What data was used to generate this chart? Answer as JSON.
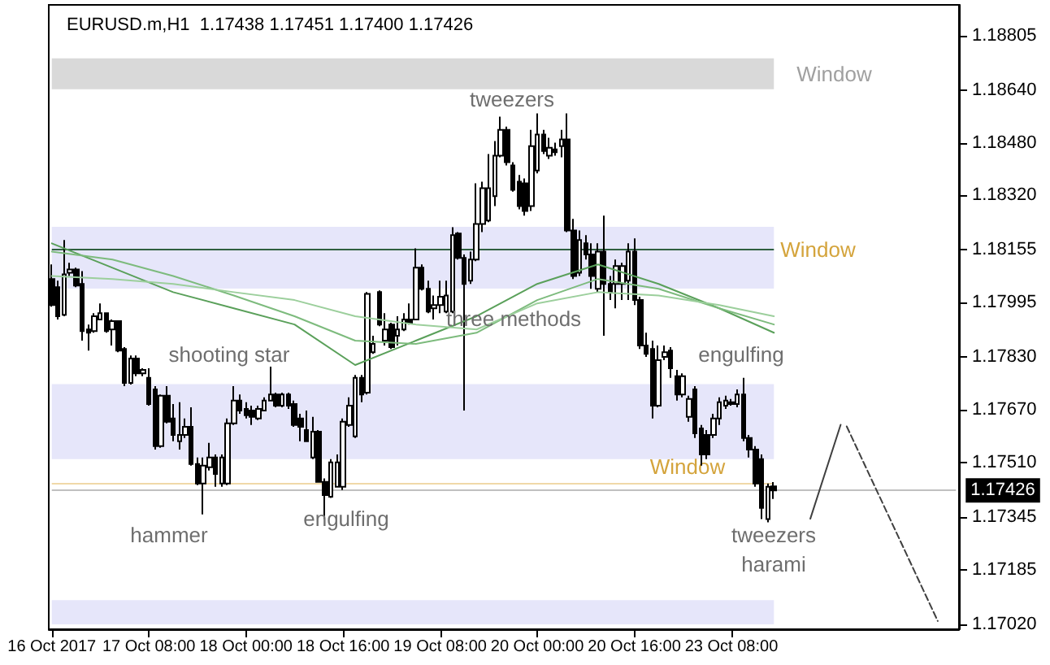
{
  "chart_data": {
    "type": "candlestick",
    "title": "EURUSD.m,H1  1.17438 1.17451 1.17400 1.17426",
    "color": "#000000",
    "categories": [
      "16 Oct 2017",
      null,
      null,
      null,
      null,
      null,
      null,
      null,
      null,
      null,
      null,
      null,
      null,
      null,
      null,
      null,
      "17 Oct 08:00",
      null,
      null,
      null,
      null,
      null,
      null,
      null,
      null,
      null,
      null,
      null,
      null,
      null,
      null,
      null,
      "18 Oct 00:00",
      null,
      null,
      null,
      null,
      null,
      null,
      null,
      null,
      null,
      null,
      null,
      null,
      null,
      null,
      null,
      "18 Oct 16:00",
      null,
      null,
      null,
      null,
      null,
      null,
      null,
      null,
      null,
      null,
      null,
      null,
      null,
      null,
      null,
      "19 Oct 08:00",
      null,
      null,
      null,
      null,
      null,
      null,
      null,
      null,
      null,
      null,
      null,
      null,
      null,
      null,
      null,
      "20 Oct 00:00",
      null,
      null,
      null,
      null,
      null,
      null,
      null,
      null,
      null,
      null,
      null,
      null,
      null,
      null,
      null,
      "20 Oct 16:00",
      null,
      null,
      null,
      null,
      null,
      null,
      null,
      null,
      null,
      null,
      null,
      null,
      null,
      null,
      null,
      "23 Oct 08:00",
      null,
      null,
      null,
      null,
      null,
      null,
      null,
      null,
      null,
      null,
      null,
      null,
      null,
      null,
      null,
      null,
      null,
      null,
      null,
      null,
      null,
      null,
      null,
      null,
      null,
      null,
      null,
      null,
      null,
      null,
      null,
      null,
      null,
      null,
      null,
      null,
      null
    ],
    "ohlc": [
      [
        1.18067,
        1.18111,
        1.17983,
        1.17988
      ],
      [
        1.18042,
        1.18062,
        1.17944,
        1.17954
      ],
      [
        1.17958,
        1.18185,
        1.17954,
        1.18081
      ],
      [
        1.18086,
        1.18116,
        1.18076,
        1.18096
      ],
      [
        1.18096,
        1.18101,
        1.18042,
        1.18047
      ],
      [
        1.18052,
        1.18091,
        1.1788,
        1.17909
      ],
      [
        1.17914,
        1.17929,
        1.1785,
        1.17904
      ],
      [
        1.17909,
        1.17963,
        1.17904,
        1.17954
      ],
      [
        1.17944,
        1.17993,
        1.17944,
        1.17963
      ],
      [
        1.17963,
        1.17963,
        1.17904,
        1.17909
      ],
      [
        1.17914,
        1.17944,
        1.17865,
        1.17939
      ],
      [
        1.17939,
        1.17939,
        1.17845,
        1.1785
      ],
      [
        1.17855,
        1.1786,
        1.17742,
        1.17752
      ],
      [
        1.17752,
        1.17835,
        1.17747,
        1.17826
      ],
      [
        1.17826,
        1.17835,
        1.17772,
        1.17781
      ],
      [
        1.17781,
        1.17796,
        1.17772,
        1.17791
      ],
      [
        1.17767,
        1.17796,
        1.17683,
        1.17688
      ],
      [
        1.17732,
        1.17742,
        1.1755,
        1.1756
      ],
      [
        1.1756,
        1.17717,
        1.17555,
        1.17713
      ],
      [
        1.17713,
        1.17742,
        1.17629,
        1.17634
      ],
      [
        1.17644,
        1.17688,
        1.17575,
        1.17594
      ],
      [
        1.17575,
        1.17693,
        1.1755,
        1.17594
      ],
      [
        1.17594,
        1.17644,
        1.17585,
        1.17619
      ],
      [
        1.17619,
        1.17678,
        1.17501,
        1.17506
      ],
      [
        1.17506,
        1.17526,
        1.17442,
        1.17447
      ],
      [
        1.17447,
        1.17526,
        1.17353,
        1.17501
      ],
      [
        1.17496,
        1.1757,
        1.17486,
        1.17526
      ],
      [
        1.17526,
        1.17535,
        1.17437,
        1.17476
      ],
      [
        1.17447,
        1.17535,
        1.17437,
        1.17526
      ],
      [
        1.17447,
        1.17644,
        1.17442,
        1.17629
      ],
      [
        1.17629,
        1.17742,
        1.17624,
        1.17698
      ],
      [
        1.17698,
        1.17717,
        1.17658,
        1.17668
      ],
      [
        1.17673,
        1.17693,
        1.17644,
        1.17654
      ],
      [
        1.17668,
        1.17683,
        1.17624,
        1.17649
      ],
      [
        1.17644,
        1.17683,
        1.17639,
        1.17673
      ],
      [
        1.17668,
        1.17708,
        1.17668,
        1.17698
      ],
      [
        1.17698,
        1.17801,
        1.17698,
        1.17717
      ],
      [
        1.17717,
        1.17722,
        1.17678,
        1.17683
      ],
      [
        1.17683,
        1.17722,
        1.17678,
        1.17717
      ],
      [
        1.17717,
        1.17722,
        1.17673,
        1.17683
      ],
      [
        1.17688,
        1.17698,
        1.17619,
        1.17624
      ],
      [
        1.17644,
        1.17658,
        1.17575,
        1.17619
      ],
      [
        1.17609,
        1.17668,
        1.17575,
        1.17575
      ],
      [
        1.17526,
        1.17649,
        1.17521,
        1.17604
      ],
      [
        1.17604,
        1.17609,
        1.17452,
        1.17452
      ],
      [
        1.17452,
        1.17462,
        1.17339,
        1.17412
      ],
      [
        1.17407,
        1.17521,
        1.17403,
        1.17511
      ],
      [
        1.17437,
        1.17535,
        1.17437,
        1.17511
      ],
      [
        1.17437,
        1.17644,
        1.17427,
        1.17634
      ],
      [
        1.17624,
        1.17708,
        1.17619,
        1.17683
      ],
      [
        1.1759,
        1.17776,
        1.17585,
        1.17767
      ],
      [
        1.17767,
        1.17776,
        1.17693,
        1.17717
      ],
      [
        1.17722,
        1.18027,
        1.17717,
        1.18022
      ],
      [
        1.17845,
        1.17895,
        1.1784,
        1.1787
      ],
      [
        1.18027,
        1.18032,
        1.17924,
        1.17929
      ],
      [
        1.1788,
        1.17963,
        1.17865,
        1.17914
      ],
      [
        1.17929,
        1.17934,
        1.17855,
        1.1786
      ],
      [
        1.17895,
        1.17954,
        1.17865,
        1.17914
      ],
      [
        1.17914,
        1.17963,
        1.17909,
        1.17944
      ],
      [
        1.17944,
        1.17993,
        1.17929,
        1.17934
      ],
      [
        1.17944,
        1.1816,
        1.17944,
        1.18101
      ],
      [
        1.18101,
        1.18111,
        1.18032,
        1.18037
      ],
      [
        1.18037,
        1.18062,
        1.17963,
        1.17968
      ],
      [
        1.17978,
        1.18017,
        1.17944,
        1.17988
      ],
      [
        1.17988,
        1.18062,
        1.17963,
        1.18013
      ],
      [
        1.17968,
        1.18062,
        1.17963,
        1.18017
      ],
      [
        1.17968,
        1.18224,
        1.17963,
        1.182
      ],
      [
        1.18205,
        1.18209,
        1.18126,
        1.18131
      ],
      [
        1.18131,
        1.18141,
        1.17668,
        1.18052
      ],
      [
        1.18062,
        1.1815,
        1.18052,
        1.18126
      ],
      [
        1.18126,
        1.18357,
        1.18121,
        1.18234
      ],
      [
        1.18234,
        1.18362,
        1.18209,
        1.18342
      ],
      [
        1.18244,
        1.18446,
        1.18239,
        1.18342
      ],
      [
        1.18318,
        1.18485,
        1.18288,
        1.18441
      ],
      [
        1.18441,
        1.18559,
        1.18436,
        1.18519
      ],
      [
        1.18519,
        1.18529,
        1.18411,
        1.18421
      ],
      [
        1.18411,
        1.18421,
        1.18332,
        1.18337
      ],
      [
        1.18362,
        1.18382,
        1.18278,
        1.18288
      ],
      [
        1.18357,
        1.18372,
        1.18259,
        1.18273
      ],
      [
        1.18288,
        1.18519,
        1.18273,
        1.1847
      ],
      [
        1.18396,
        1.18569,
        1.18387,
        1.18505
      ],
      [
        1.18505,
        1.18519,
        1.18446,
        1.18455
      ],
      [
        1.18441,
        1.18495,
        1.18431,
        1.18465
      ],
      [
        1.1846,
        1.1848,
        1.18441,
        1.18451
      ],
      [
        1.1847,
        1.18519,
        1.18436,
        1.1849
      ],
      [
        1.1849,
        1.18569,
        1.18209,
        1.18214
      ],
      [
        1.18214,
        1.18249,
        1.18067,
        1.18076
      ],
      [
        1.18086,
        1.18214,
        1.18076,
        1.18185
      ],
      [
        1.18175,
        1.182,
        1.18126,
        1.18141
      ],
      [
        1.18141,
        1.18175,
        1.18037,
        1.18076
      ],
      [
        1.18037,
        1.18175,
        1.18027,
        1.1815
      ],
      [
        1.1815,
        1.18259,
        1.17895,
        1.18052
      ],
      [
        1.18052,
        1.18076,
        1.18003,
        1.18027
      ],
      [
        1.18052,
        1.18126,
        1.17978,
        1.18106
      ],
      [
        1.18052,
        1.18116,
        1.18003,
        1.18106
      ],
      [
        1.18062,
        1.18175,
        1.18003,
        1.1815
      ],
      [
        1.1815,
        1.1819,
        1.17988,
        1.18003
      ],
      [
        1.18003,
        1.18013,
        1.17855,
        1.17865
      ],
      [
        1.17865,
        1.17904,
        1.17831,
        1.1784
      ],
      [
        1.17855,
        1.1788,
        1.17644,
        1.17683
      ],
      [
        1.17683,
        1.17865,
        1.17678,
        1.17821
      ],
      [
        1.17831,
        1.17865,
        1.17821,
        1.17845
      ],
      [
        1.1785,
        1.1786,
        1.17767,
        1.17796
      ],
      [
        1.17772,
        1.17791,
        1.17698,
        1.17717
      ],
      [
        1.17717,
        1.17781,
        1.17708,
        1.17772
      ],
      [
        1.17649,
        1.17713,
        1.17634,
        1.17703
      ],
      [
        1.17732,
        1.17742,
        1.17585,
        1.17599
      ],
      [
        1.17614,
        1.17624,
        1.17501,
        1.17535
      ],
      [
        1.17594,
        1.17609,
        1.17521,
        1.17535
      ],
      [
        1.17594,
        1.17658,
        1.17585,
        1.17644
      ],
      [
        1.17644,
        1.17708,
        1.17624,
        1.17693
      ],
      [
        1.17683,
        1.17713,
        1.17673,
        1.17698
      ],
      [
        1.17693,
        1.17703,
        1.17683,
        1.17688
      ],
      [
        1.17688,
        1.17732,
        1.17678,
        1.17717
      ],
      [
        1.17717,
        1.17767,
        1.17575,
        1.17585
      ],
      [
        1.17585,
        1.17594,
        1.17526,
        1.1755
      ],
      [
        1.1755,
        1.1756,
        1.17437,
        1.17447
      ],
      [
        1.17521,
        1.17535,
        1.17339,
        1.17373
      ],
      [
        1.17339,
        1.17447,
        1.17329,
        1.17437
      ],
      [
        1.17438,
        1.17451,
        1.174,
        1.17426
      ],
      null,
      null,
      null,
      null,
      null,
      null,
      null,
      null,
      null,
      null,
      null,
      null,
      null,
      null,
      null,
      null,
      null,
      null,
      null,
      null,
      null,
      null,
      null,
      null,
      null,
      null,
      null,
      null,
      null,
      null
    ],
    "series": [
      {
        "type": "line",
        "color": "#5aa05a",
        "values": [
          1.18175,
          null,
          null,
          null,
          null,
          null,
          null,
          null,
          null,
          null,
          1.18101,
          null,
          null,
          null,
          null,
          null,
          null,
          null,
          null,
          null,
          1.18027,
          null,
          null,
          null,
          null,
          null,
          null,
          null,
          null,
          null,
          1.17978,
          null,
          null,
          null,
          null,
          null,
          null,
          null,
          null,
          null,
          1.17929,
          null,
          null,
          null,
          null,
          null,
          null,
          null,
          null,
          null,
          1.17806,
          null,
          null,
          null,
          null,
          null,
          null,
          null,
          null,
          null,
          1.1788,
          null,
          null,
          null,
          null,
          null,
          null,
          null,
          null,
          null,
          1.17954,
          null,
          null,
          null,
          null,
          null,
          null,
          null,
          null,
          null,
          1.18052,
          null,
          null,
          null,
          null,
          null,
          null,
          null,
          null,
          null,
          1.18111,
          null,
          null,
          null,
          null,
          null,
          null,
          null,
          null,
          null,
          1.18052,
          null,
          null,
          null,
          null,
          null,
          null,
          null,
          null,
          null,
          1.17978,
          null,
          null,
          null,
          null,
          null,
          null,
          null,
          null,
          1.17904,
          null,
          null,
          null,
          null,
          null,
          null,
          null,
          null,
          null,
          null,
          null,
          null,
          null,
          null,
          null,
          null,
          null,
          null,
          null,
          null,
          null,
          null,
          null,
          null,
          null,
          null,
          null,
          null,
          null,
          null
        ]
      },
      {
        "type": "line",
        "color": "#7dbb7d",
        "values": [
          1.1815,
          null,
          null,
          null,
          null,
          null,
          null,
          null,
          null,
          null,
          1.18126,
          null,
          null,
          null,
          null,
          null,
          null,
          null,
          null,
          null,
          1.18076,
          null,
          null,
          null,
          null,
          null,
          null,
          null,
          null,
          null,
          1.18017,
          null,
          null,
          null,
          null,
          null,
          null,
          null,
          null,
          null,
          1.17954,
          null,
          null,
          null,
          null,
          null,
          null,
          null,
          null,
          null,
          1.1788,
          null,
          null,
          null,
          null,
          null,
          null,
          null,
          null,
          null,
          1.1787,
          null,
          null,
          null,
          null,
          null,
          null,
          null,
          null,
          null,
          1.17904,
          null,
          null,
          null,
          null,
          null,
          null,
          null,
          null,
          null,
          1.18003,
          null,
          null,
          null,
          null,
          null,
          null,
          null,
          null,
          null,
          1.18067,
          null,
          null,
          null,
          null,
          null,
          null,
          null,
          null,
          null,
          1.18037,
          null,
          null,
          null,
          null,
          null,
          null,
          null,
          null,
          null,
          1.17978,
          null,
          null,
          null,
          null,
          null,
          null,
          null,
          null,
          1.17929,
          null,
          null,
          null,
          null,
          null,
          null,
          null,
          null,
          null,
          null,
          null,
          null,
          null,
          null,
          null,
          null,
          null,
          null,
          null,
          null,
          null,
          null,
          null,
          null,
          null,
          null,
          null,
          null,
          null,
          null
        ]
      },
      {
        "type": "line",
        "color": "#9ccf9c",
        "values": [
          1.18076,
          null,
          null,
          null,
          null,
          null,
          null,
          null,
          null,
          null,
          1.18067,
          null,
          null,
          null,
          null,
          null,
          null,
          null,
          null,
          null,
          1.18052,
          null,
          null,
          null,
          null,
          null,
          null,
          null,
          null,
          null,
          1.18027,
          null,
          null,
          null,
          null,
          null,
          null,
          null,
          null,
          null,
          1.18003,
          null,
          null,
          null,
          null,
          null,
          null,
          null,
          null,
          null,
          1.17954,
          null,
          null,
          null,
          null,
          null,
          null,
          null,
          null,
          null,
          1.17929,
          null,
          null,
          null,
          null,
          null,
          null,
          null,
          null,
          null,
          1.17914,
          null,
          null,
          null,
          null,
          null,
          null,
          null,
          null,
          null,
          1.17993,
          null,
          null,
          null,
          null,
          null,
          null,
          null,
          null,
          null,
          1.18027,
          null,
          null,
          null,
          null,
          null,
          null,
          null,
          null,
          null,
          1.18017,
          null,
          null,
          null,
          null,
          null,
          null,
          null,
          null,
          null,
          1.17988,
          null,
          null,
          null,
          null,
          null,
          null,
          null,
          null,
          1.17954,
          null,
          null,
          null,
          null,
          null,
          null,
          null,
          null,
          null,
          null,
          null,
          null,
          null,
          null,
          null,
          null,
          null,
          null,
          null,
          null,
          null,
          null,
          null,
          null,
          null,
          null,
          null,
          null,
          null,
          null
        ]
      },
      {
        "type": "line",
        "color": "#404040",
        "line_style": "solid",
        "values": [
          null,
          null,
          null,
          null,
          null,
          null,
          null,
          null,
          null,
          null,
          null,
          null,
          null,
          null,
          null,
          null,
          null,
          null,
          null,
          null,
          null,
          null,
          null,
          null,
          null,
          null,
          null,
          null,
          null,
          null,
          null,
          null,
          null,
          null,
          null,
          null,
          null,
          null,
          null,
          null,
          null,
          null,
          null,
          null,
          null,
          null,
          null,
          null,
          null,
          null,
          null,
          null,
          null,
          null,
          null,
          null,
          null,
          null,
          null,
          null,
          null,
          null,
          null,
          null,
          null,
          null,
          null,
          null,
          null,
          null,
          null,
          null,
          null,
          null,
          null,
          null,
          null,
          null,
          null,
          null,
          null,
          null,
          null,
          null,
          null,
          null,
          null,
          null,
          null,
          null,
          null,
          null,
          null,
          null,
          null,
          null,
          null,
          null,
          null,
          null,
          null,
          null,
          null,
          null,
          null,
          null,
          null,
          null,
          null,
          null,
          null,
          null,
          null,
          null,
          null,
          null,
          null,
          null,
          null,
          null,
          null,
          null,
          null,
          null,
          null,
          1.1734,
          null,
          null,
          null,
          null,
          1.17625,
          null,
          null,
          null,
          null,
          null,
          null,
          null,
          null,
          null,
          null,
          null,
          null,
          null,
          null,
          null,
          null,
          null,
          null,
          null
        ]
      },
      {
        "type": "line",
        "color": "#404040",
        "line_style": "dashed",
        "values": [
          null,
          null,
          null,
          null,
          null,
          null,
          null,
          null,
          null,
          null,
          null,
          null,
          null,
          null,
          null,
          null,
          null,
          null,
          null,
          null,
          null,
          null,
          null,
          null,
          null,
          null,
          null,
          null,
          null,
          null,
          null,
          null,
          null,
          null,
          null,
          null,
          null,
          null,
          null,
          null,
          null,
          null,
          null,
          null,
          null,
          null,
          null,
          null,
          null,
          null,
          null,
          null,
          null,
          null,
          null,
          null,
          null,
          null,
          null,
          null,
          null,
          null,
          null,
          null,
          null,
          null,
          null,
          null,
          null,
          null,
          null,
          null,
          null,
          null,
          null,
          null,
          null,
          null,
          null,
          null,
          null,
          null,
          null,
          null,
          null,
          null,
          null,
          null,
          null,
          null,
          null,
          null,
          null,
          null,
          null,
          null,
          null,
          null,
          null,
          null,
          null,
          null,
          null,
          null,
          null,
          null,
          null,
          null,
          null,
          null,
          null,
          null,
          null,
          null,
          null,
          null,
          null,
          null,
          null,
          null,
          null,
          null,
          null,
          null,
          null,
          null,
          null,
          null,
          null,
          null,
          null,
          1.1762,
          null,
          null,
          null,
          null,
          null,
          null,
          null,
          null,
          null,
          null,
          null,
          null,
          null,
          null,
          1.1703,
          null,
          null,
          null
        ]
      }
    ],
    "ylim": [
      1.17005,
      1.18898
    ],
    "yticks": [
      {
        "value": 1.18805,
        "label": "1.18805"
      },
      {
        "value": 1.1864,
        "label": "1.18640"
      },
      {
        "value": 1.1848,
        "label": "1.18480"
      },
      {
        "value": 1.1832,
        "label": "1.18320"
      },
      {
        "value": 1.18155,
        "label": "1.18155"
      },
      {
        "value": 1.17995,
        "label": "1.17995"
      },
      {
        "value": 1.1783,
        "label": "1.17830"
      },
      {
        "value": 1.1767,
        "label": "1.17670"
      },
      {
        "value": 1.1751,
        "label": "1.17510"
      },
      {
        "value": 1.17345,
        "label": "1.17345"
      },
      {
        "value": 1.17185,
        "label": "1.17185"
      },
      {
        "value": 1.1702,
        "label": "1.17020"
      }
    ],
    "bands": [
      {
        "axis": "y",
        "from": 1.18642,
        "to": 1.18736,
        "label": "Window",
        "color": "#d9d9d9"
      },
      {
        "axis": "y",
        "from": 1.18038,
        "to": 1.18225,
        "color": "#e6e6fa"
      },
      {
        "axis": "y",
        "from": 1.17521,
        "to": 1.17748,
        "color": "#e6e6fa"
      },
      {
        "axis": "y",
        "from": 1.1702,
        "to": 1.17093,
        "color": "#e6e6fa"
      }
    ],
    "ref_lines": [
      {
        "axis": "y",
        "value": 1.18155,
        "label": "Window",
        "color": "#2f5f3f"
      },
      {
        "axis": "y",
        "value": 1.17445,
        "label": "Window",
        "color": "#f0d9a8"
      },
      {
        "axis": "y",
        "value": 1.17426,
        "label": "1.17426",
        "color": "#c0c0c0"
      }
    ],
    "annotations": [
      "tweezers",
      "three methods",
      "shooting star",
      "engulfing",
      "hammer",
      "engulfing",
      "tweezers",
      "harami"
    ],
    "marker": "none",
    "grid": false
  }
}
